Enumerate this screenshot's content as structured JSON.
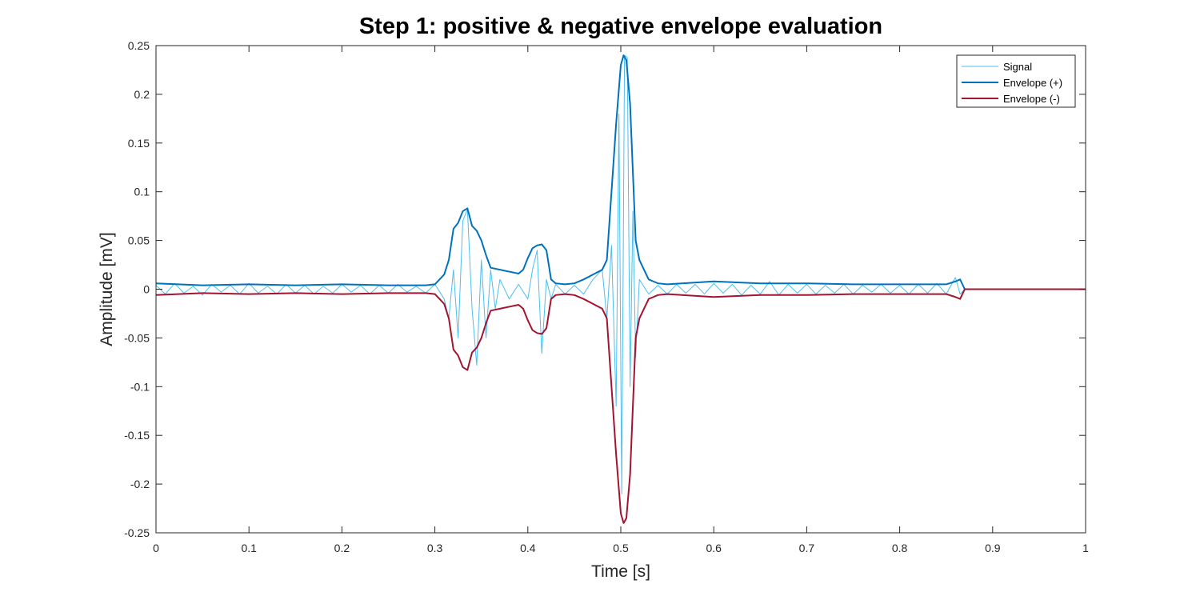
{
  "chart_data": {
    "type": "line",
    "title": "Step 1: positive & negative envelope evaluation",
    "xlabel": "Time [s]",
    "ylabel": "Amplitude [mV]",
    "xlim": [
      0,
      1
    ],
    "ylim": [
      -0.25,
      0.25
    ],
    "grid": false,
    "legend_position": "top-right",
    "x_ticks": [
      0,
      0.1,
      0.2,
      0.3,
      0.4,
      0.5,
      0.6,
      0.7,
      0.8,
      0.9,
      1
    ],
    "x_tick_labels": [
      "0",
      "0.1",
      "0.2",
      "0.3",
      "0.4",
      "0.5",
      "0.6",
      "0.7",
      "0.8",
      "0.9",
      "1"
    ],
    "y_ticks": [
      -0.25,
      -0.2,
      -0.15,
      -0.1,
      -0.05,
      0,
      0.05,
      0.1,
      0.15,
      0.2,
      0.25
    ],
    "y_tick_labels": [
      "-0.25",
      "-0.2",
      "-0.15",
      "-0.1",
      "-0.05",
      "0",
      "0.05",
      "0.1",
      "0.15",
      "0.2",
      "0.25"
    ],
    "series": [
      {
        "name": "Signal",
        "color": "#4DBEEE",
        "x": [
          0,
          0.01,
          0.02,
          0.03,
          0.04,
          0.05,
          0.06,
          0.07,
          0.08,
          0.09,
          0.1,
          0.11,
          0.12,
          0.13,
          0.14,
          0.15,
          0.16,
          0.17,
          0.18,
          0.19,
          0.2,
          0.21,
          0.22,
          0.23,
          0.24,
          0.25,
          0.26,
          0.27,
          0.28,
          0.29,
          0.3,
          0.31,
          0.315,
          0.32,
          0.325,
          0.33,
          0.335,
          0.34,
          0.345,
          0.35,
          0.355,
          0.36,
          0.365,
          0.37,
          0.38,
          0.39,
          0.4,
          0.405,
          0.41,
          0.415,
          0.42,
          0.425,
          0.43,
          0.44,
          0.45,
          0.46,
          0.47,
          0.48,
          0.485,
          0.49,
          0.495,
          0.498,
          0.501,
          0.504,
          0.507,
          0.51,
          0.513,
          0.516,
          0.52,
          0.53,
          0.54,
          0.55,
          0.56,
          0.57,
          0.58,
          0.59,
          0.6,
          0.61,
          0.62,
          0.63,
          0.64,
          0.65,
          0.66,
          0.67,
          0.68,
          0.69,
          0.7,
          0.71,
          0.72,
          0.73,
          0.74,
          0.75,
          0.76,
          0.77,
          0.78,
          0.79,
          0.8,
          0.81,
          0.82,
          0.83,
          0.84,
          0.85,
          0.86,
          0.865,
          0.87,
          0.9,
          1
        ],
        "y": [
          0.004,
          -0.005,
          0.006,
          -0.004,
          0.003,
          -0.006,
          0.005,
          -0.003,
          0.004,
          -0.005,
          0.006,
          -0.004,
          0.003,
          -0.005,
          0.005,
          -0.004,
          0.004,
          -0.005,
          0.003,
          -0.004,
          0.005,
          -0.003,
          0.004,
          -0.005,
          0.004,
          -0.004,
          0.005,
          -0.003,
          0.003,
          -0.004,
          0.005,
          -0.01,
          -0.03,
          0.02,
          -0.05,
          0.07,
          0.082,
          -0.02,
          -0.078,
          0.03,
          -0.05,
          0.02,
          -0.02,
          0.01,
          -0.01,
          0.005,
          -0.01,
          0.02,
          0.04,
          -0.066,
          0.01,
          -0.01,
          0.005,
          -0.005,
          0.004,
          -0.005,
          0.01,
          0.02,
          -0.03,
          0.045,
          -0.12,
          0.18,
          -0.21,
          0.24,
          0.238,
          -0.1,
          0.08,
          -0.07,
          0.01,
          -0.005,
          0.004,
          -0.005,
          0.005,
          -0.004,
          0.005,
          -0.005,
          0.006,
          -0.004,
          0.005,
          -0.006,
          0.004,
          -0.005,
          0.008,
          -0.006,
          0.005,
          -0.004,
          0.005,
          -0.005,
          0.004,
          -0.004,
          0.005,
          -0.005,
          0.004,
          -0.003,
          0.005,
          -0.004,
          0.004,
          -0.005,
          0.005,
          -0.004,
          0.006,
          -0.005,
          0.012,
          -0.005,
          0,
          0,
          0
        ]
      },
      {
        "name": "Envelope (+)",
        "color": "#0072BD",
        "x": [
          0,
          0.05,
          0.1,
          0.15,
          0.2,
          0.25,
          0.29,
          0.3,
          0.31,
          0.315,
          0.32,
          0.325,
          0.33,
          0.335,
          0.34,
          0.345,
          0.35,
          0.355,
          0.36,
          0.37,
          0.38,
          0.39,
          0.395,
          0.4,
          0.405,
          0.41,
          0.415,
          0.42,
          0.425,
          0.43,
          0.44,
          0.45,
          0.46,
          0.47,
          0.48,
          0.485,
          0.49,
          0.495,
          0.5,
          0.503,
          0.506,
          0.51,
          0.513,
          0.516,
          0.52,
          0.525,
          0.53,
          0.535,
          0.54,
          0.55,
          0.6,
          0.65,
          0.7,
          0.75,
          0.8,
          0.85,
          0.86,
          0.865,
          0.87,
          0.9,
          1
        ],
        "y": [
          0.006,
          0.004,
          0.005,
          0.004,
          0.005,
          0.004,
          0.004,
          0.005,
          0.015,
          0.03,
          0.062,
          0.068,
          0.08,
          0.083,
          0.065,
          0.06,
          0.05,
          0.035,
          0.022,
          0.02,
          0.018,
          0.016,
          0.02,
          0.032,
          0.042,
          0.045,
          0.046,
          0.04,
          0.01,
          0.006,
          0.005,
          0.006,
          0.01,
          0.015,
          0.02,
          0.03,
          0.1,
          0.17,
          0.23,
          0.24,
          0.235,
          0.19,
          0.12,
          0.05,
          0.03,
          0.02,
          0.01,
          0.008,
          0.006,
          0.005,
          0.008,
          0.006,
          0.006,
          0.005,
          0.005,
          0.005,
          0.008,
          0.01,
          0,
          0,
          0
        ]
      },
      {
        "name": "Envelope (-)",
        "color": "#A2142F",
        "x": [
          0,
          0.05,
          0.1,
          0.15,
          0.2,
          0.25,
          0.29,
          0.3,
          0.31,
          0.315,
          0.32,
          0.325,
          0.33,
          0.335,
          0.34,
          0.345,
          0.35,
          0.355,
          0.36,
          0.37,
          0.38,
          0.39,
          0.395,
          0.4,
          0.405,
          0.41,
          0.415,
          0.42,
          0.425,
          0.43,
          0.44,
          0.45,
          0.46,
          0.47,
          0.48,
          0.485,
          0.49,
          0.495,
          0.5,
          0.503,
          0.506,
          0.51,
          0.513,
          0.516,
          0.52,
          0.525,
          0.53,
          0.535,
          0.54,
          0.55,
          0.6,
          0.65,
          0.7,
          0.75,
          0.8,
          0.85,
          0.86,
          0.865,
          0.87,
          0.9,
          1
        ],
        "y": [
          -0.006,
          -0.004,
          -0.005,
          -0.004,
          -0.005,
          -0.004,
          -0.004,
          -0.005,
          -0.015,
          -0.03,
          -0.062,
          -0.068,
          -0.08,
          -0.083,
          -0.065,
          -0.06,
          -0.05,
          -0.035,
          -0.022,
          -0.02,
          -0.018,
          -0.016,
          -0.02,
          -0.032,
          -0.042,
          -0.045,
          -0.046,
          -0.04,
          -0.01,
          -0.006,
          -0.005,
          -0.006,
          -0.01,
          -0.015,
          -0.02,
          -0.03,
          -0.1,
          -0.17,
          -0.23,
          -0.24,
          -0.235,
          -0.19,
          -0.12,
          -0.05,
          -0.03,
          -0.02,
          -0.01,
          -0.008,
          -0.006,
          -0.005,
          -0.008,
          -0.006,
          -0.006,
          -0.005,
          -0.005,
          -0.005,
          -0.008,
          -0.01,
          0,
          0,
          0
        ]
      }
    ]
  }
}
